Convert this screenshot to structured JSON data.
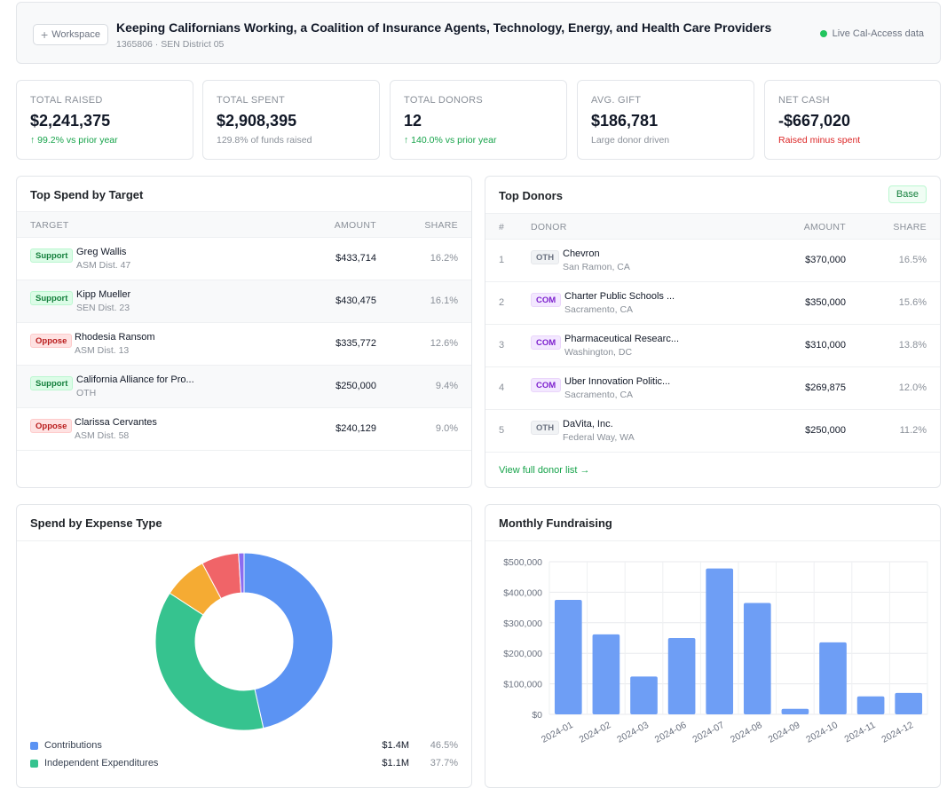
{
  "header": {
    "workspace_label": "Workspace",
    "title": "Keeping Californians Working, a Coalition of Insurance Agents, Technology, Energy, and Health Care Providers",
    "subtitle": "1365806 · SEN District 05",
    "live_label": "Live Cal-Access data"
  },
  "kpis": [
    {
      "label": "TOTAL RAISED",
      "value": "$2,241,375",
      "note": "↑ 99.2% vs prior year"
    },
    {
      "label": "TOTAL SPENT",
      "value": "$2,908,395",
      "note": "129.8% of funds raised"
    },
    {
      "label": "TOTAL DONORS",
      "value": "12",
      "note": "↑ 140.0% vs prior year"
    },
    {
      "label": "AVG. GIFT",
      "value": "$186,781",
      "note": "Large donor driven"
    },
    {
      "label": "NET CASH",
      "value": "-$667,020",
      "note": "Raised minus spent"
    }
  ],
  "top_spend": {
    "title": "Top Spend by Target",
    "columns": {
      "target": "TARGET",
      "amount": "AMOUNT",
      "share": "SHARE"
    },
    "rows": [
      {
        "position": "Support",
        "name": "Greg Wallis",
        "district": "ASM Dist. 47",
        "amount": "$433,714",
        "share": "16.2%"
      },
      {
        "position": "Support",
        "name": "Kipp Mueller",
        "district": "SEN Dist. 23",
        "amount": "$430,475",
        "share": "16.1%"
      },
      {
        "position": "Oppose",
        "name": "Rhodesia Ransom",
        "district": "ASM Dist. 13",
        "amount": "$335,772",
        "share": "12.6%"
      },
      {
        "position": "Support",
        "name": "California Alliance for Pro...",
        "district": "OTH",
        "amount": "$250,000",
        "share": "9.4%"
      },
      {
        "position": "Oppose",
        "name": "Clarissa Cervantes",
        "district": "ASM Dist. 58",
        "amount": "$240,129",
        "share": "9.0%"
      }
    ]
  },
  "top_donors": {
    "title": "Top Donors",
    "tag": "Base",
    "columns": {
      "index": "#",
      "donor": "DONOR",
      "amount": "AMOUNT",
      "share": "SHARE"
    },
    "rows": [
      {
        "index": "1",
        "type": "OTH",
        "name": "Chevron",
        "location": "San Ramon, CA",
        "amount": "$370,000",
        "share": "16.5%"
      },
      {
        "index": "2",
        "type": "COM",
        "name": "Charter Public Schools ...",
        "location": "Sacramento, CA",
        "amount": "$350,000",
        "share": "15.6%"
      },
      {
        "index": "3",
        "type": "COM",
        "name": "Pharmaceutical Researc...",
        "location": "Washington, DC",
        "amount": "$310,000",
        "share": "13.8%"
      },
      {
        "index": "4",
        "type": "COM",
        "name": "Uber Innovation Politic...",
        "location": "Sacramento, CA",
        "amount": "$269,875",
        "share": "12.0%"
      },
      {
        "index": "5",
        "type": "OTH",
        "name": "DaVita, Inc.",
        "location": "Federal Way, WA",
        "amount": "$250,000",
        "share": "11.2%"
      }
    ],
    "view_link": "View full donor list →"
  },
  "expense": {
    "title": "Spend by Expense Type",
    "legend": [
      {
        "name": "Contributions",
        "value": "$1.4M",
        "share": "46.5%"
      },
      {
        "name": "Independent Expenditures",
        "value": "$1.1M",
        "share": "37.7%"
      }
    ]
  },
  "fundraising": {
    "title": "Monthly Fundraising"
  },
  "chart_data": [
    {
      "type": "pie",
      "title": "Spend by Expense Type",
      "donut": true,
      "slices": [
        {
          "label": "Contributions",
          "value": 46.5,
          "color": "#5b93f3"
        },
        {
          "label": "Independent Expenditures",
          "value": 37.7,
          "color": "#36c38f"
        },
        {
          "label": "",
          "value": 8.0,
          "color": "#f5ab33"
        },
        {
          "label": "",
          "value": 6.8,
          "color": "#f06468"
        },
        {
          "label": "",
          "value": 1.0,
          "color": "#8b6cf0"
        }
      ]
    },
    {
      "type": "bar",
      "title": "Monthly Fundraising",
      "categories": [
        "2024-01",
        "2024-02",
        "2024-03",
        "2024-06",
        "2024-07",
        "2024-08",
        "2024-09",
        "2024-10",
        "2024-11",
        "2024-12"
      ],
      "values": [
        375000,
        262000,
        124000,
        250000,
        478000,
        365000,
        18000,
        236000,
        59000,
        70000
      ],
      "ylim": [
        0,
        500000
      ],
      "yticks": [
        "$0",
        "$100,000",
        "$200,000",
        "$300,000",
        "$400,000",
        "$500,000"
      ],
      "ytick_values": [
        0,
        100000,
        200000,
        300000,
        400000,
        500000
      ],
      "color": "#6e9ef5",
      "grid": true
    }
  ]
}
